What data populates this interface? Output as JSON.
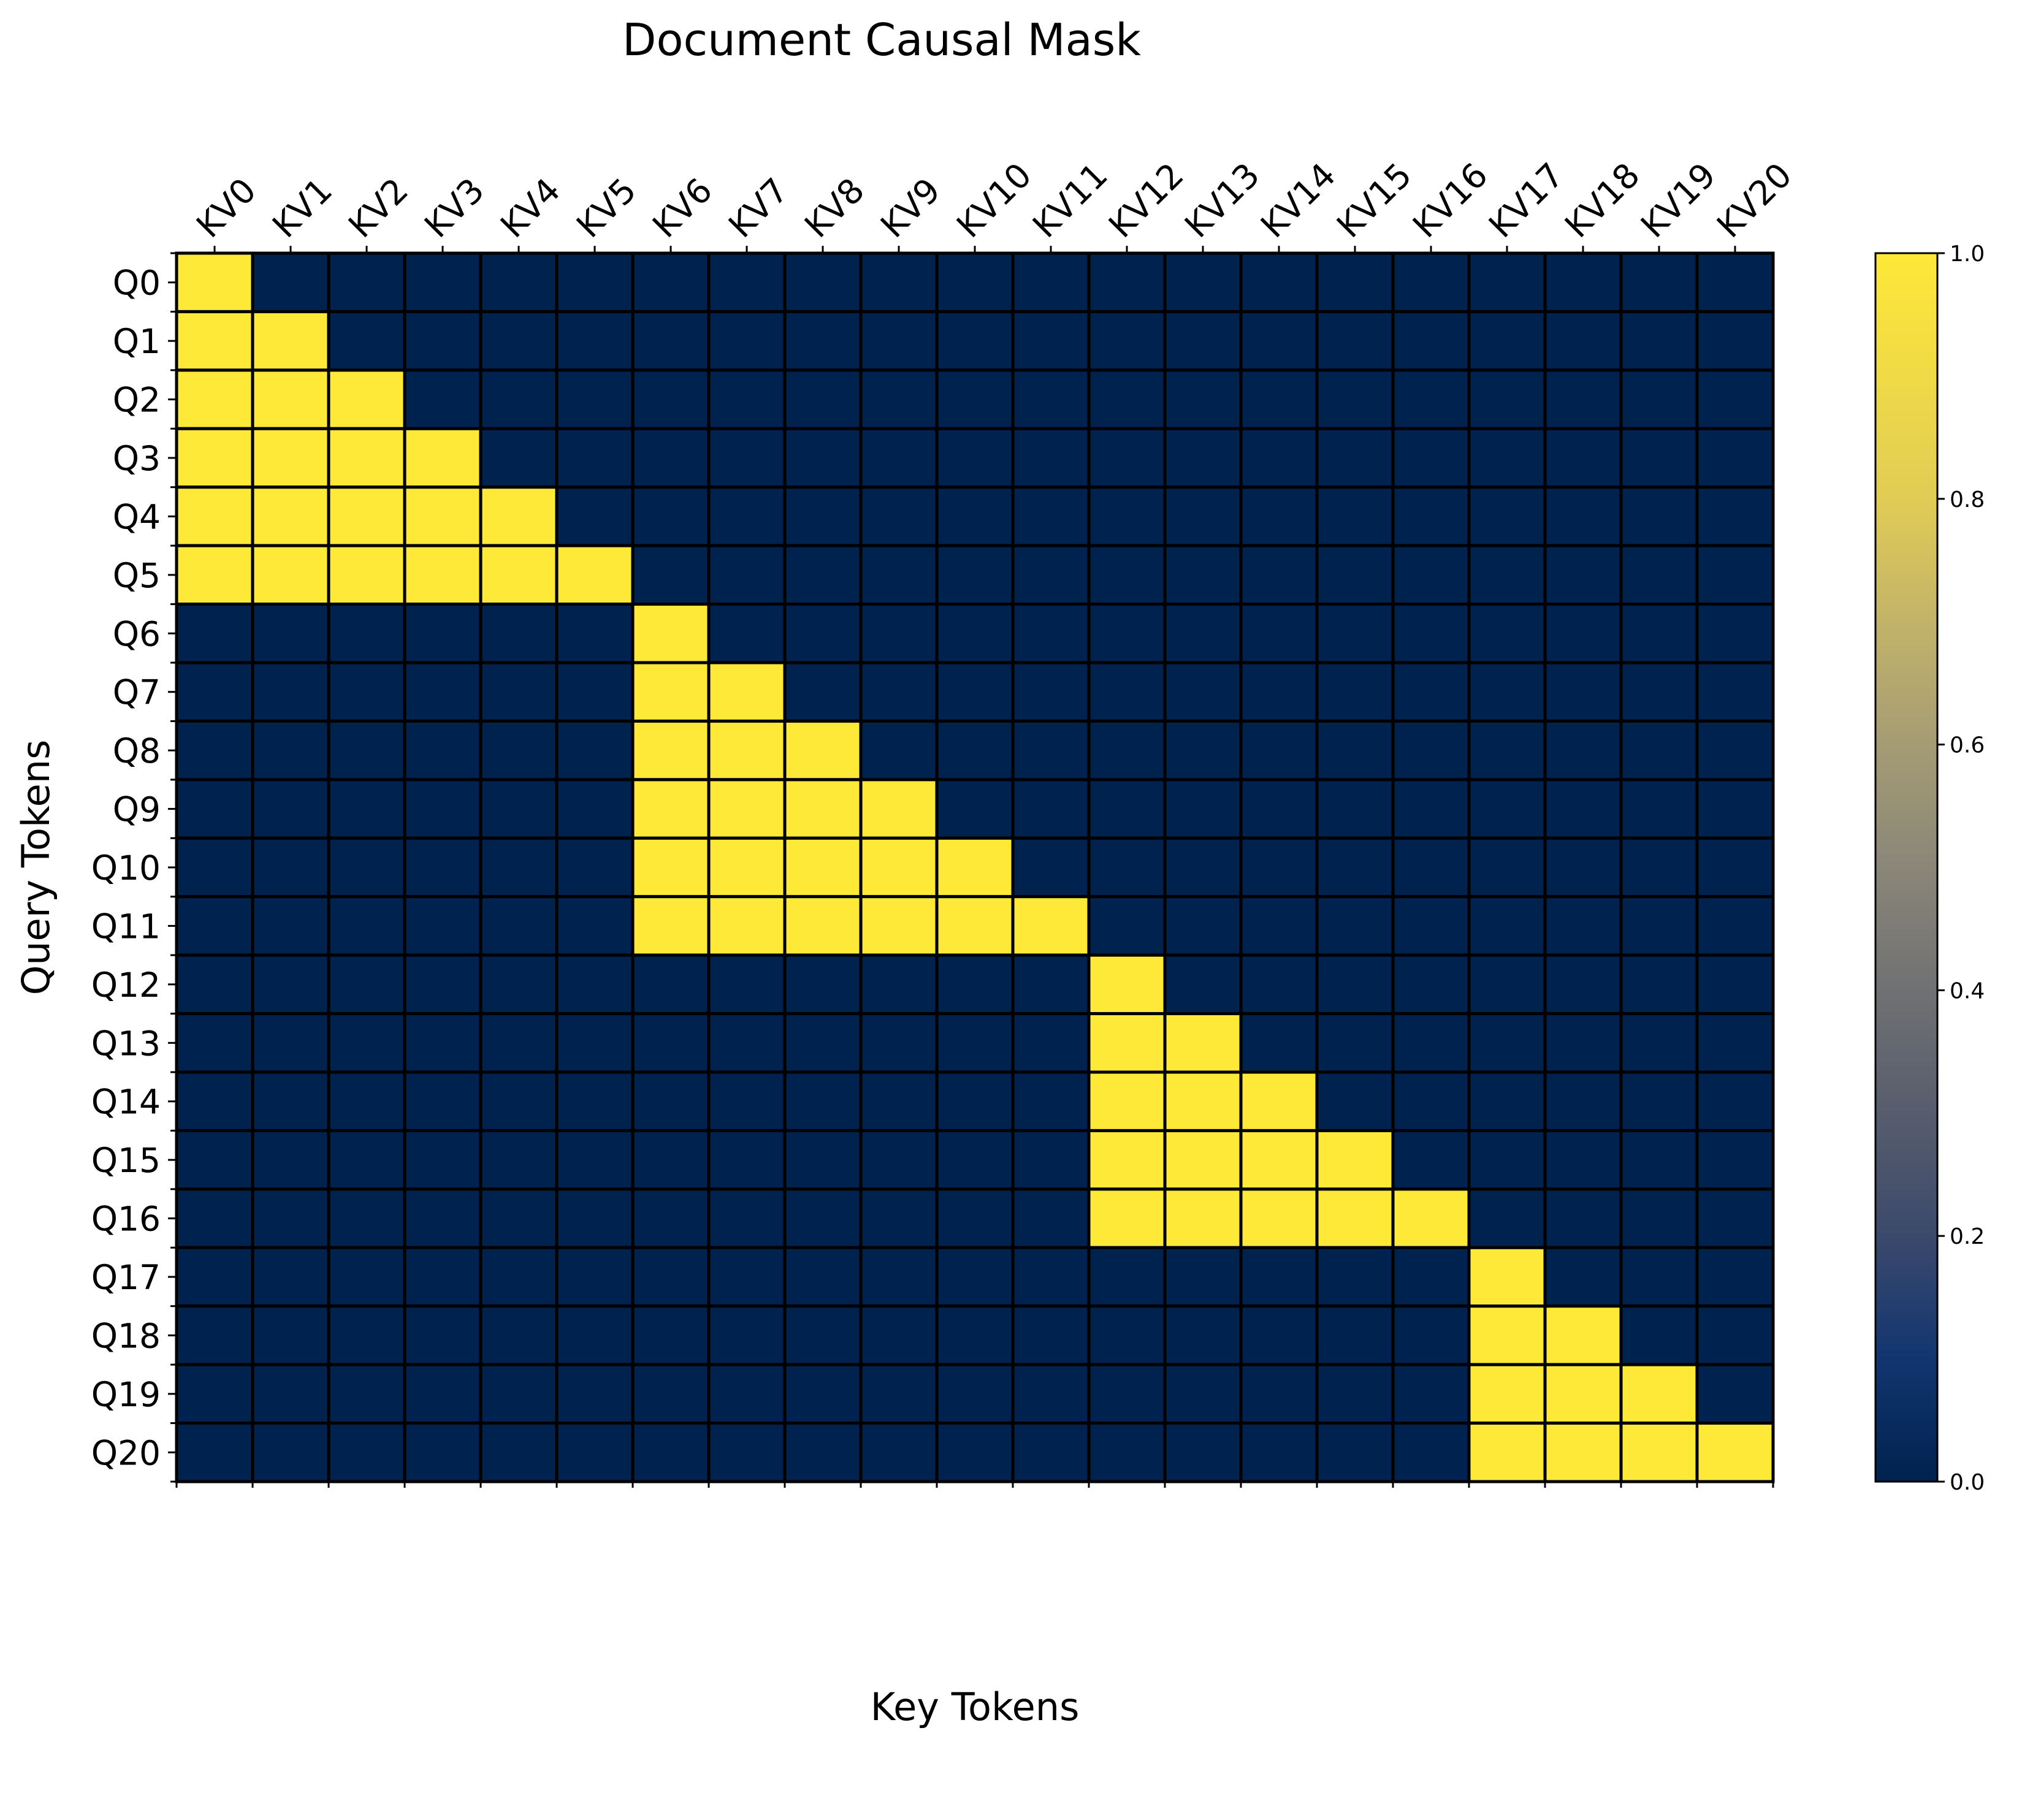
{
  "chart_data": {
    "type": "heatmap",
    "title": "Document Causal Mask",
    "xlabel": "Key Tokens",
    "ylabel": "Query Tokens",
    "x_labels": [
      "KV0",
      "KV1",
      "KV2",
      "KV3",
      "KV4",
      "KV5",
      "KV6",
      "KV7",
      "KV8",
      "KV9",
      "KV10",
      "KV11",
      "KV12",
      "KV13",
      "KV14",
      "KV15",
      "KV16",
      "KV17",
      "KV18",
      "KV19",
      "KV20"
    ],
    "y_labels": [
      "Q0",
      "Q1",
      "Q2",
      "Q3",
      "Q4",
      "Q5",
      "Q6",
      "Q7",
      "Q8",
      "Q9",
      "Q10",
      "Q11",
      "Q12",
      "Q13",
      "Q14",
      "Q15",
      "Q16",
      "Q17",
      "Q18",
      "Q19",
      "Q20"
    ],
    "values": [
      [
        1,
        0,
        0,
        0,
        0,
        0,
        0,
        0,
        0,
        0,
        0,
        0,
        0,
        0,
        0,
        0,
        0,
        0,
        0,
        0,
        0
      ],
      [
        1,
        1,
        0,
        0,
        0,
        0,
        0,
        0,
        0,
        0,
        0,
        0,
        0,
        0,
        0,
        0,
        0,
        0,
        0,
        0,
        0
      ],
      [
        1,
        1,
        1,
        0,
        0,
        0,
        0,
        0,
        0,
        0,
        0,
        0,
        0,
        0,
        0,
        0,
        0,
        0,
        0,
        0,
        0
      ],
      [
        1,
        1,
        1,
        1,
        0,
        0,
        0,
        0,
        0,
        0,
        0,
        0,
        0,
        0,
        0,
        0,
        0,
        0,
        0,
        0,
        0
      ],
      [
        1,
        1,
        1,
        1,
        1,
        0,
        0,
        0,
        0,
        0,
        0,
        0,
        0,
        0,
        0,
        0,
        0,
        0,
        0,
        0,
        0
      ],
      [
        1,
        1,
        1,
        1,
        1,
        1,
        0,
        0,
        0,
        0,
        0,
        0,
        0,
        0,
        0,
        0,
        0,
        0,
        0,
        0,
        0
      ],
      [
        0,
        0,
        0,
        0,
        0,
        0,
        1,
        0,
        0,
        0,
        0,
        0,
        0,
        0,
        0,
        0,
        0,
        0,
        0,
        0,
        0
      ],
      [
        0,
        0,
        0,
        0,
        0,
        0,
        1,
        1,
        0,
        0,
        0,
        0,
        0,
        0,
        0,
        0,
        0,
        0,
        0,
        0,
        0
      ],
      [
        0,
        0,
        0,
        0,
        0,
        0,
        1,
        1,
        1,
        0,
        0,
        0,
        0,
        0,
        0,
        0,
        0,
        0,
        0,
        0,
        0
      ],
      [
        0,
        0,
        0,
        0,
        0,
        0,
        1,
        1,
        1,
        1,
        0,
        0,
        0,
        0,
        0,
        0,
        0,
        0,
        0,
        0,
        0
      ],
      [
        0,
        0,
        0,
        0,
        0,
        0,
        1,
        1,
        1,
        1,
        1,
        0,
        0,
        0,
        0,
        0,
        0,
        0,
        0,
        0,
        0
      ],
      [
        0,
        0,
        0,
        0,
        0,
        0,
        1,
        1,
        1,
        1,
        1,
        1,
        0,
        0,
        0,
        0,
        0,
        0,
        0,
        0,
        0
      ],
      [
        0,
        0,
        0,
        0,
        0,
        0,
        0,
        0,
        0,
        0,
        0,
        0,
        1,
        0,
        0,
        0,
        0,
        0,
        0,
        0,
        0
      ],
      [
        0,
        0,
        0,
        0,
        0,
        0,
        0,
        0,
        0,
        0,
        0,
        0,
        1,
        1,
        0,
        0,
        0,
        0,
        0,
        0,
        0
      ],
      [
        0,
        0,
        0,
        0,
        0,
        0,
        0,
        0,
        0,
        0,
        0,
        0,
        1,
        1,
        1,
        0,
        0,
        0,
        0,
        0,
        0
      ],
      [
        0,
        0,
        0,
        0,
        0,
        0,
        0,
        0,
        0,
        0,
        0,
        0,
        1,
        1,
        1,
        1,
        0,
        0,
        0,
        0,
        0
      ],
      [
        0,
        0,
        0,
        0,
        0,
        0,
        0,
        0,
        0,
        0,
        0,
        0,
        1,
        1,
        1,
        1,
        1,
        0,
        0,
        0,
        0
      ],
      [
        0,
        0,
        0,
        0,
        0,
        0,
        0,
        0,
        0,
        0,
        0,
        0,
        0,
        0,
        0,
        0,
        0,
        1,
        0,
        0,
        0
      ],
      [
        0,
        0,
        0,
        0,
        0,
        0,
        0,
        0,
        0,
        0,
        0,
        0,
        0,
        0,
        0,
        0,
        0,
        1,
        1,
        0,
        0
      ],
      [
        0,
        0,
        0,
        0,
        0,
        0,
        0,
        0,
        0,
        0,
        0,
        0,
        0,
        0,
        0,
        0,
        0,
        1,
        1,
        1,
        0
      ],
      [
        0,
        0,
        0,
        0,
        0,
        0,
        0,
        0,
        0,
        0,
        0,
        0,
        0,
        0,
        0,
        0,
        0,
        1,
        1,
        1,
        1
      ]
    ],
    "value_range": [
      0,
      1
    ],
    "colormap": "cividis",
    "color_low": "#00224e",
    "color_high": "#fee838",
    "cell_edge_color": "#000000",
    "x_ticks_position": "top",
    "x_tick_rotation_deg": 45,
    "colorbar": {
      "ticks": [
        0.0,
        0.2,
        0.4,
        0.6,
        0.8,
        1.0
      ],
      "tick_labels": [
        "0.0",
        "0.2",
        "0.4",
        "0.6",
        "0.8",
        "1.0"
      ],
      "placement": "right"
    },
    "grid": false
  }
}
